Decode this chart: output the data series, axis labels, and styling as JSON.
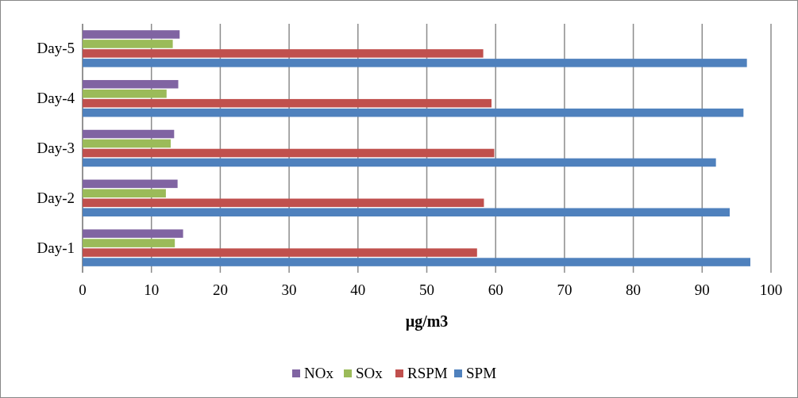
{
  "chart_data": {
    "type": "bar",
    "orientation": "horizontal",
    "xlabel": "µg/m3",
    "categories": [
      "Day-5",
      "Day-4",
      "Day-3",
      "Day-2",
      "Day-1"
    ],
    "series": [
      {
        "name": "NOx",
        "color": "#8064a2",
        "values": [
          14.1,
          13.9,
          13.3,
          13.8,
          14.6
        ]
      },
      {
        "name": "SOx",
        "color": "#9bbb59",
        "values": [
          13.1,
          12.2,
          12.8,
          12.1,
          13.4
        ]
      },
      {
        "name": "RSPM",
        "color": "#c0504d",
        "values": [
          58.2,
          59.4,
          59.8,
          58.3,
          57.3
        ]
      },
      {
        "name": "SPM",
        "color": "#4f81bd",
        "values": [
          96.5,
          96,
          92,
          94,
          97
        ]
      }
    ],
    "xlim": [
      0,
      100
    ],
    "xticks": [
      0,
      10,
      20,
      30,
      40,
      50,
      60,
      70,
      80,
      90,
      100
    ],
    "grid": "x",
    "legend": "bottom"
  }
}
